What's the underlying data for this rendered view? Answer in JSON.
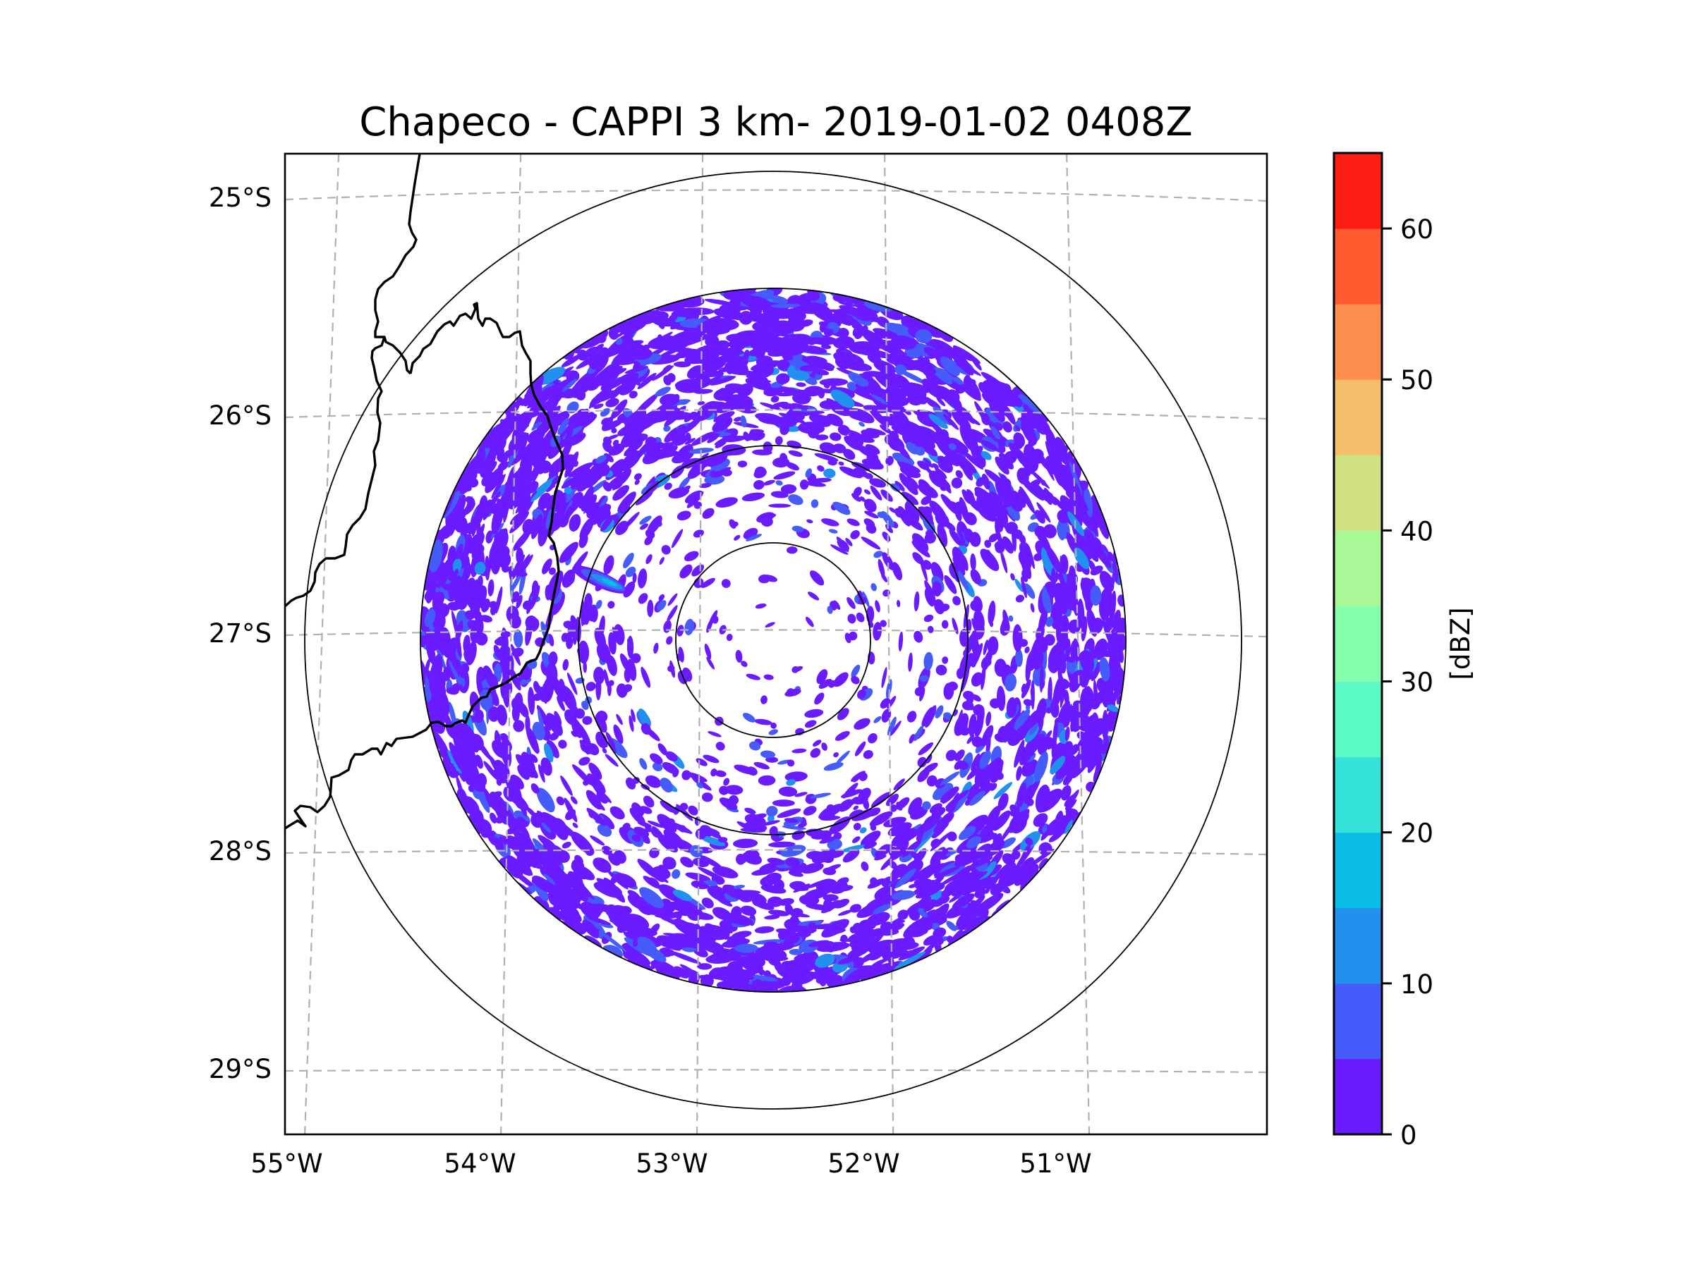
{
  "chart_data": {
    "type": "heatmap",
    "subtype": "radar-ppi-map",
    "title": "Chapeco - CAPPI 3 km- 2019-01-02 0408Z",
    "station": "Chapeco",
    "product": "CAPPI 3 km",
    "datetime": "2019-01-02 0408Z",
    "xlabel": "",
    "ylabel": "",
    "x_ticks": [
      {
        "value": -55,
        "label": "55°W"
      },
      {
        "value": -54,
        "label": "54°W"
      },
      {
        "value": -53,
        "label": "53°W"
      },
      {
        "value": -52,
        "label": "52°W"
      },
      {
        "value": -51,
        "label": "51°W"
      }
    ],
    "y_ticks": [
      {
        "value": -25,
        "label": "25°S"
      },
      {
        "value": -26,
        "label": "26°S"
      },
      {
        "value": -27,
        "label": "27°S"
      },
      {
        "value": -28,
        "label": "28°S"
      },
      {
        "value": -29,
        "label": "29°S"
      }
    ],
    "xlim": [
      -55.2,
      -50.1
    ],
    "ylim": [
      -29.3,
      -24.8
    ],
    "grid": true,
    "grid_style": "dashed-gray",
    "radar_center": {
      "lon": -52.6,
      "lat": -27.05
    },
    "range_rings": 4,
    "data_range_ring_index": 3,
    "colorbar": {
      "label": "[dBZ]",
      "position": "right",
      "vmin": 0,
      "vmax": 65,
      "step": 5,
      "ticks": [
        0,
        10,
        20,
        30,
        40,
        50,
        60
      ],
      "tick_labels": [
        "0",
        "10",
        "20",
        "30",
        "40",
        "50",
        "60"
      ],
      "levels": [
        {
          "from": 0,
          "to": 5,
          "color": "#6a1bff"
        },
        {
          "from": 5,
          "to": 10,
          "color": "#465cfa"
        },
        {
          "from": 10,
          "to": 15,
          "color": "#2190ee"
        },
        {
          "from": 15,
          "to": 20,
          "color": "#0abde6"
        },
        {
          "from": 20,
          "to": 25,
          "color": "#36e3d8"
        },
        {
          "from": 25,
          "to": 30,
          "color": "#5cfac6"
        },
        {
          "from": 30,
          "to": 35,
          "color": "#85ffac"
        },
        {
          "from": 35,
          "to": 40,
          "color": "#a8f898"
        },
        {
          "from": 40,
          "to": 45,
          "color": "#d0e184"
        },
        {
          "from": 45,
          "to": 50,
          "color": "#f4bf6c"
        },
        {
          "from": 50,
          "to": 55,
          "color": "#fe904f"
        },
        {
          "from": 55,
          "to": 60,
          "color": "#ff5a30"
        },
        {
          "from": 60,
          "to": 65,
          "color": "#ff1c12"
        }
      ]
    },
    "echo_summary": {
      "dominant_range_dbz": [
        0,
        5
      ],
      "secondary_range_dbz": [
        5,
        15
      ],
      "max_observed_dbz_approx": 20,
      "notable_feature": "elongated stronger echo streak west-northwest of radar near 53.6°W 26.8°S"
    },
    "map_features": [
      "country borders (Argentina/Paraguay/Brazil)",
      "lat/lon graticule",
      "range rings"
    ]
  }
}
